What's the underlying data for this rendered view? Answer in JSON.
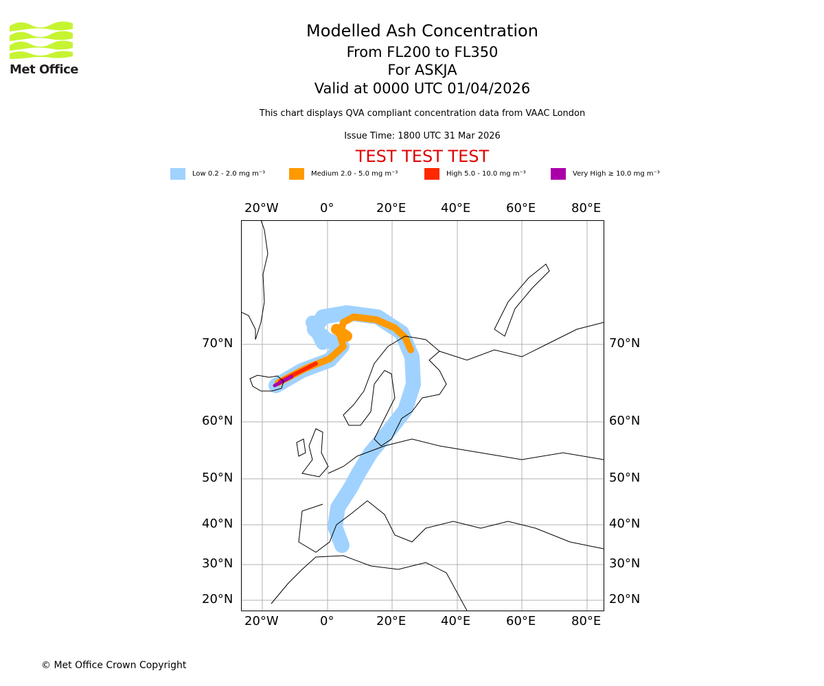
{
  "logo": {
    "text": "Met Office",
    "color": "#c6f432"
  },
  "header": {
    "title": "Modelled Ash Concentration",
    "levels": "From FL200 to FL350",
    "volcano": "For ASKJA",
    "valid": "Valid at 0000 UTC 01/04/2026",
    "description": "This chart displays QVA compliant concentration data from VAAC London",
    "issue_time": "Issue Time: 1800 UTC 31 Mar 2026",
    "test_banner": "TEST TEST TEST"
  },
  "legend": [
    {
      "label": "Low 0.2 - 2.0 mg m⁻³",
      "color": "#a0d2ff"
    },
    {
      "label": "Medium 2.0 - 5.0 mg m⁻³",
      "color": "#ff9900"
    },
    {
      "label": "High 5.0 - 10.0 mg m⁻³",
      "color": "#ff2800"
    },
    {
      "label": "Very High ≥ 10.0 mg m⁻³",
      "color": "#aa00aa"
    }
  ],
  "map": {
    "lon_labels": [
      "20°W",
      "0°",
      "20°E",
      "40°E",
      "60°E",
      "80°E"
    ],
    "lat_labels": [
      "70°N",
      "60°N",
      "50°N",
      "40°N",
      "30°N",
      "20°N"
    ]
  },
  "footer": {
    "copyright": "© Met Office Crown Copyright"
  }
}
